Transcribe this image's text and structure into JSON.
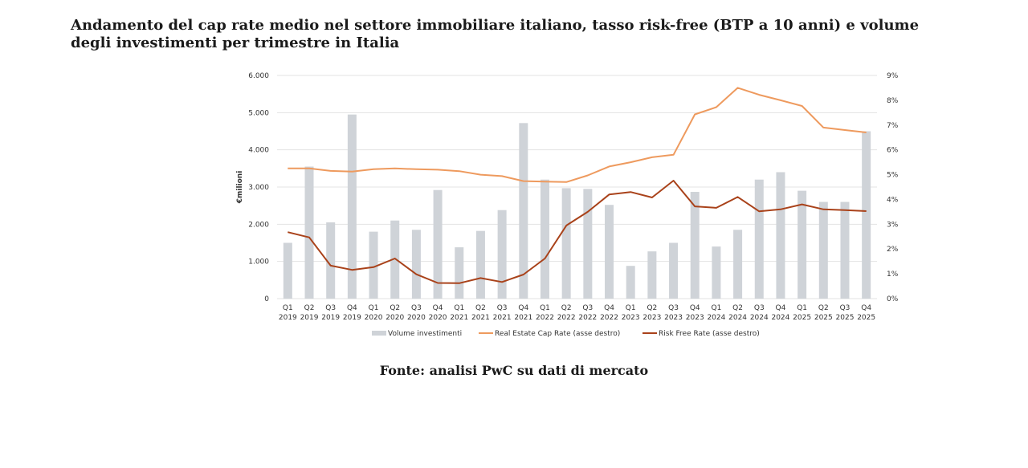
{
  "title_lines": [
    "Andamento del cap rate medio nel settore immobiliare italiano, tasso risk-free (BTP a 10 anni) e volume",
    "degli investimenti per trimestre in Italia"
  ],
  "source": "Fonte: analisi PwC su dati di mercato",
  "colors": {
    "bars": "#cfd3d8",
    "cap_rate": "#ee9a5e",
    "risk_free": "#a9421a",
    "grid": "#e3e3e3",
    "text": "#333333"
  },
  "chart_data": {
    "type": "bar",
    "ylabel": "€milioni",
    "ylim": [
      0,
      6000
    ],
    "y2lim": [
      0,
      9
    ],
    "y_ticks": [
      "0",
      "1.000",
      "2.000",
      "3.000",
      "4.000",
      "5.000",
      "6.000"
    ],
    "y2_ticks": [
      "0%",
      "1%",
      "2%",
      "3%",
      "4%",
      "5%",
      "6%",
      "7%",
      "8%",
      "9%"
    ],
    "categories": [
      [
        "Q1",
        "2019"
      ],
      [
        "Q2",
        "2019"
      ],
      [
        "Q3",
        "2019"
      ],
      [
        "Q4",
        "2019"
      ],
      [
        "Q1",
        "2020"
      ],
      [
        "Q2",
        "2020"
      ],
      [
        "Q3",
        "2020"
      ],
      [
        "Q4",
        "2020"
      ],
      [
        "Q1",
        "2021"
      ],
      [
        "Q2",
        "2021"
      ],
      [
        "Q3",
        "2021"
      ],
      [
        "Q4",
        "2021"
      ],
      [
        "Q1",
        "2022"
      ],
      [
        "Q2",
        "2022"
      ],
      [
        "Q3",
        "2022"
      ],
      [
        "Q4",
        "2022"
      ],
      [
        "Q1",
        "2023"
      ],
      [
        "Q2",
        "2023"
      ],
      [
        "Q3",
        "2023"
      ],
      [
        "Q4",
        "2023"
      ],
      [
        "Q1",
        "2024"
      ],
      [
        "Q2",
        "2024"
      ],
      [
        "Q3",
        "2024"
      ],
      [
        "Q4",
        "2024"
      ],
      [
        "Q1",
        "2025"
      ],
      [
        "Q2",
        "2025"
      ],
      [
        "Q3",
        "2025"
      ],
      [
        "Q4",
        "2025"
      ]
    ],
    "series": [
      {
        "name": "Volume investimenti",
        "axis": "left",
        "kind": "bar",
        "values": [
          1500,
          3550,
          2050,
          4950,
          1800,
          2100,
          1850,
          2920,
          1380,
          1820,
          2380,
          4720,
          3200,
          2970,
          2950,
          2520,
          880,
          1270,
          1500,
          2870,
          1400,
          1850,
          3200,
          3400,
          2900,
          2600,
          2600,
          4500
        ]
      },
      {
        "name": "Real Estate Cap Rate (asse destro)",
        "axis": "right",
        "kind": "line",
        "values": [
          5.25,
          5.25,
          5.15,
          5.12,
          5.22,
          5.25,
          5.22,
          5.2,
          5.14,
          5.0,
          4.94,
          4.74,
          4.72,
          4.7,
          4.97,
          5.33,
          5.5,
          5.7,
          5.8,
          7.43,
          7.72,
          8.5,
          8.22,
          8.0,
          7.77,
          6.9,
          6.8,
          6.7
        ]
      },
      {
        "name": "Risk Free Rate (asse destro)",
        "axis": "right",
        "kind": "line",
        "values": [
          2.68,
          2.47,
          1.33,
          1.16,
          1.27,
          1.62,
          0.98,
          0.63,
          0.62,
          0.83,
          0.67,
          0.97,
          1.62,
          2.95,
          3.5,
          4.2,
          4.3,
          4.08,
          4.76,
          3.72,
          3.66,
          4.1,
          3.52,
          3.6,
          3.8,
          3.6,
          3.57,
          3.53
        ]
      }
    ]
  }
}
